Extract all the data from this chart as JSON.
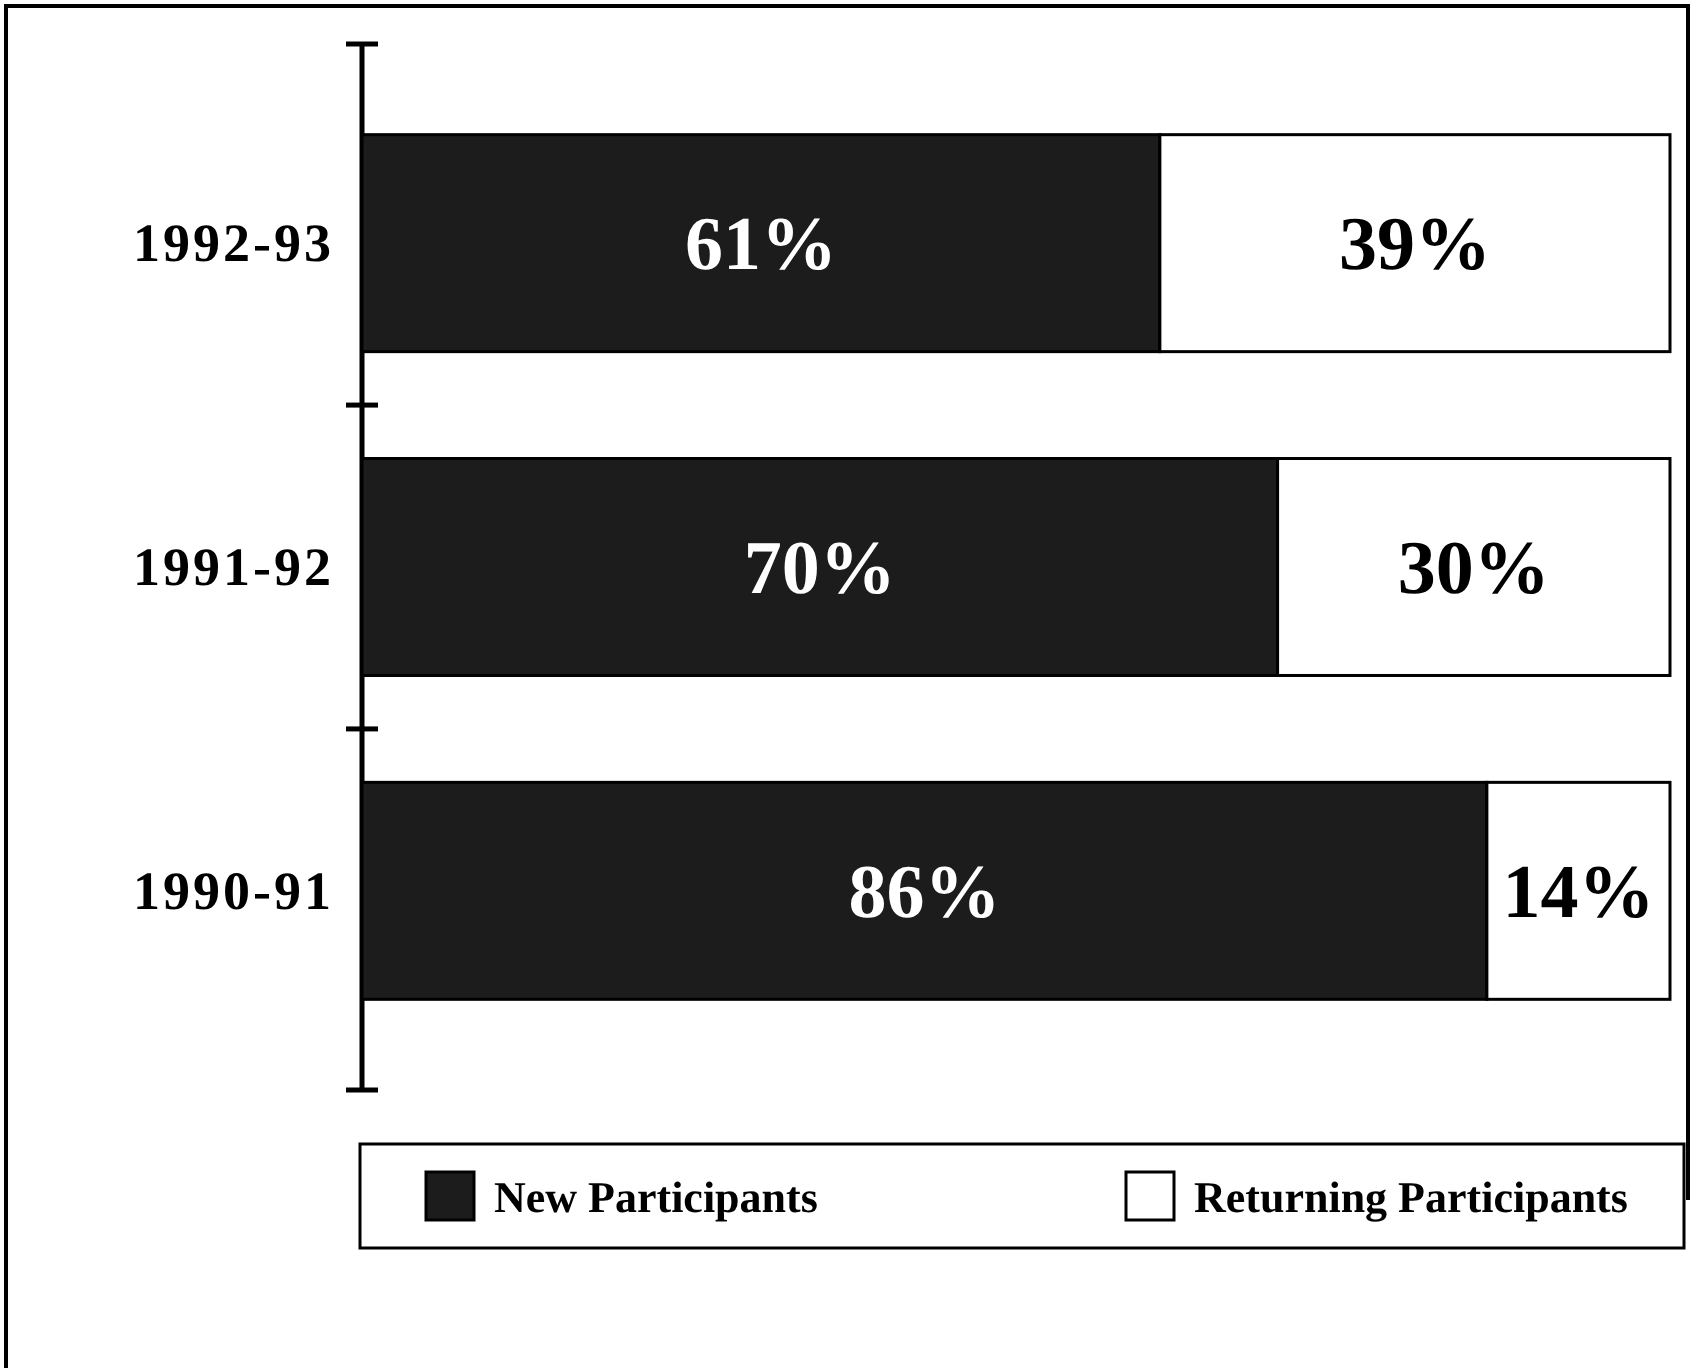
{
  "chart_data": {
    "type": "bar",
    "orientation": "horizontal",
    "stacked": true,
    "categories": [
      "1992-93",
      "1991-92",
      "1990-91"
    ],
    "xlim": [
      0,
      100
    ],
    "series": [
      {
        "name": "New Participants",
        "color": "#1c1c1c",
        "values": [
          61,
          70,
          86
        ],
        "value_labels": [
          "61%",
          "70%",
          "86%"
        ]
      },
      {
        "name": "Returning Participants",
        "color": "#ffffff",
        "values": [
          39,
          30,
          14
        ],
        "value_labels": [
          "39%",
          "30%",
          "14%"
        ]
      }
    ],
    "legend": "bottom",
    "tick_labels": "y"
  }
}
